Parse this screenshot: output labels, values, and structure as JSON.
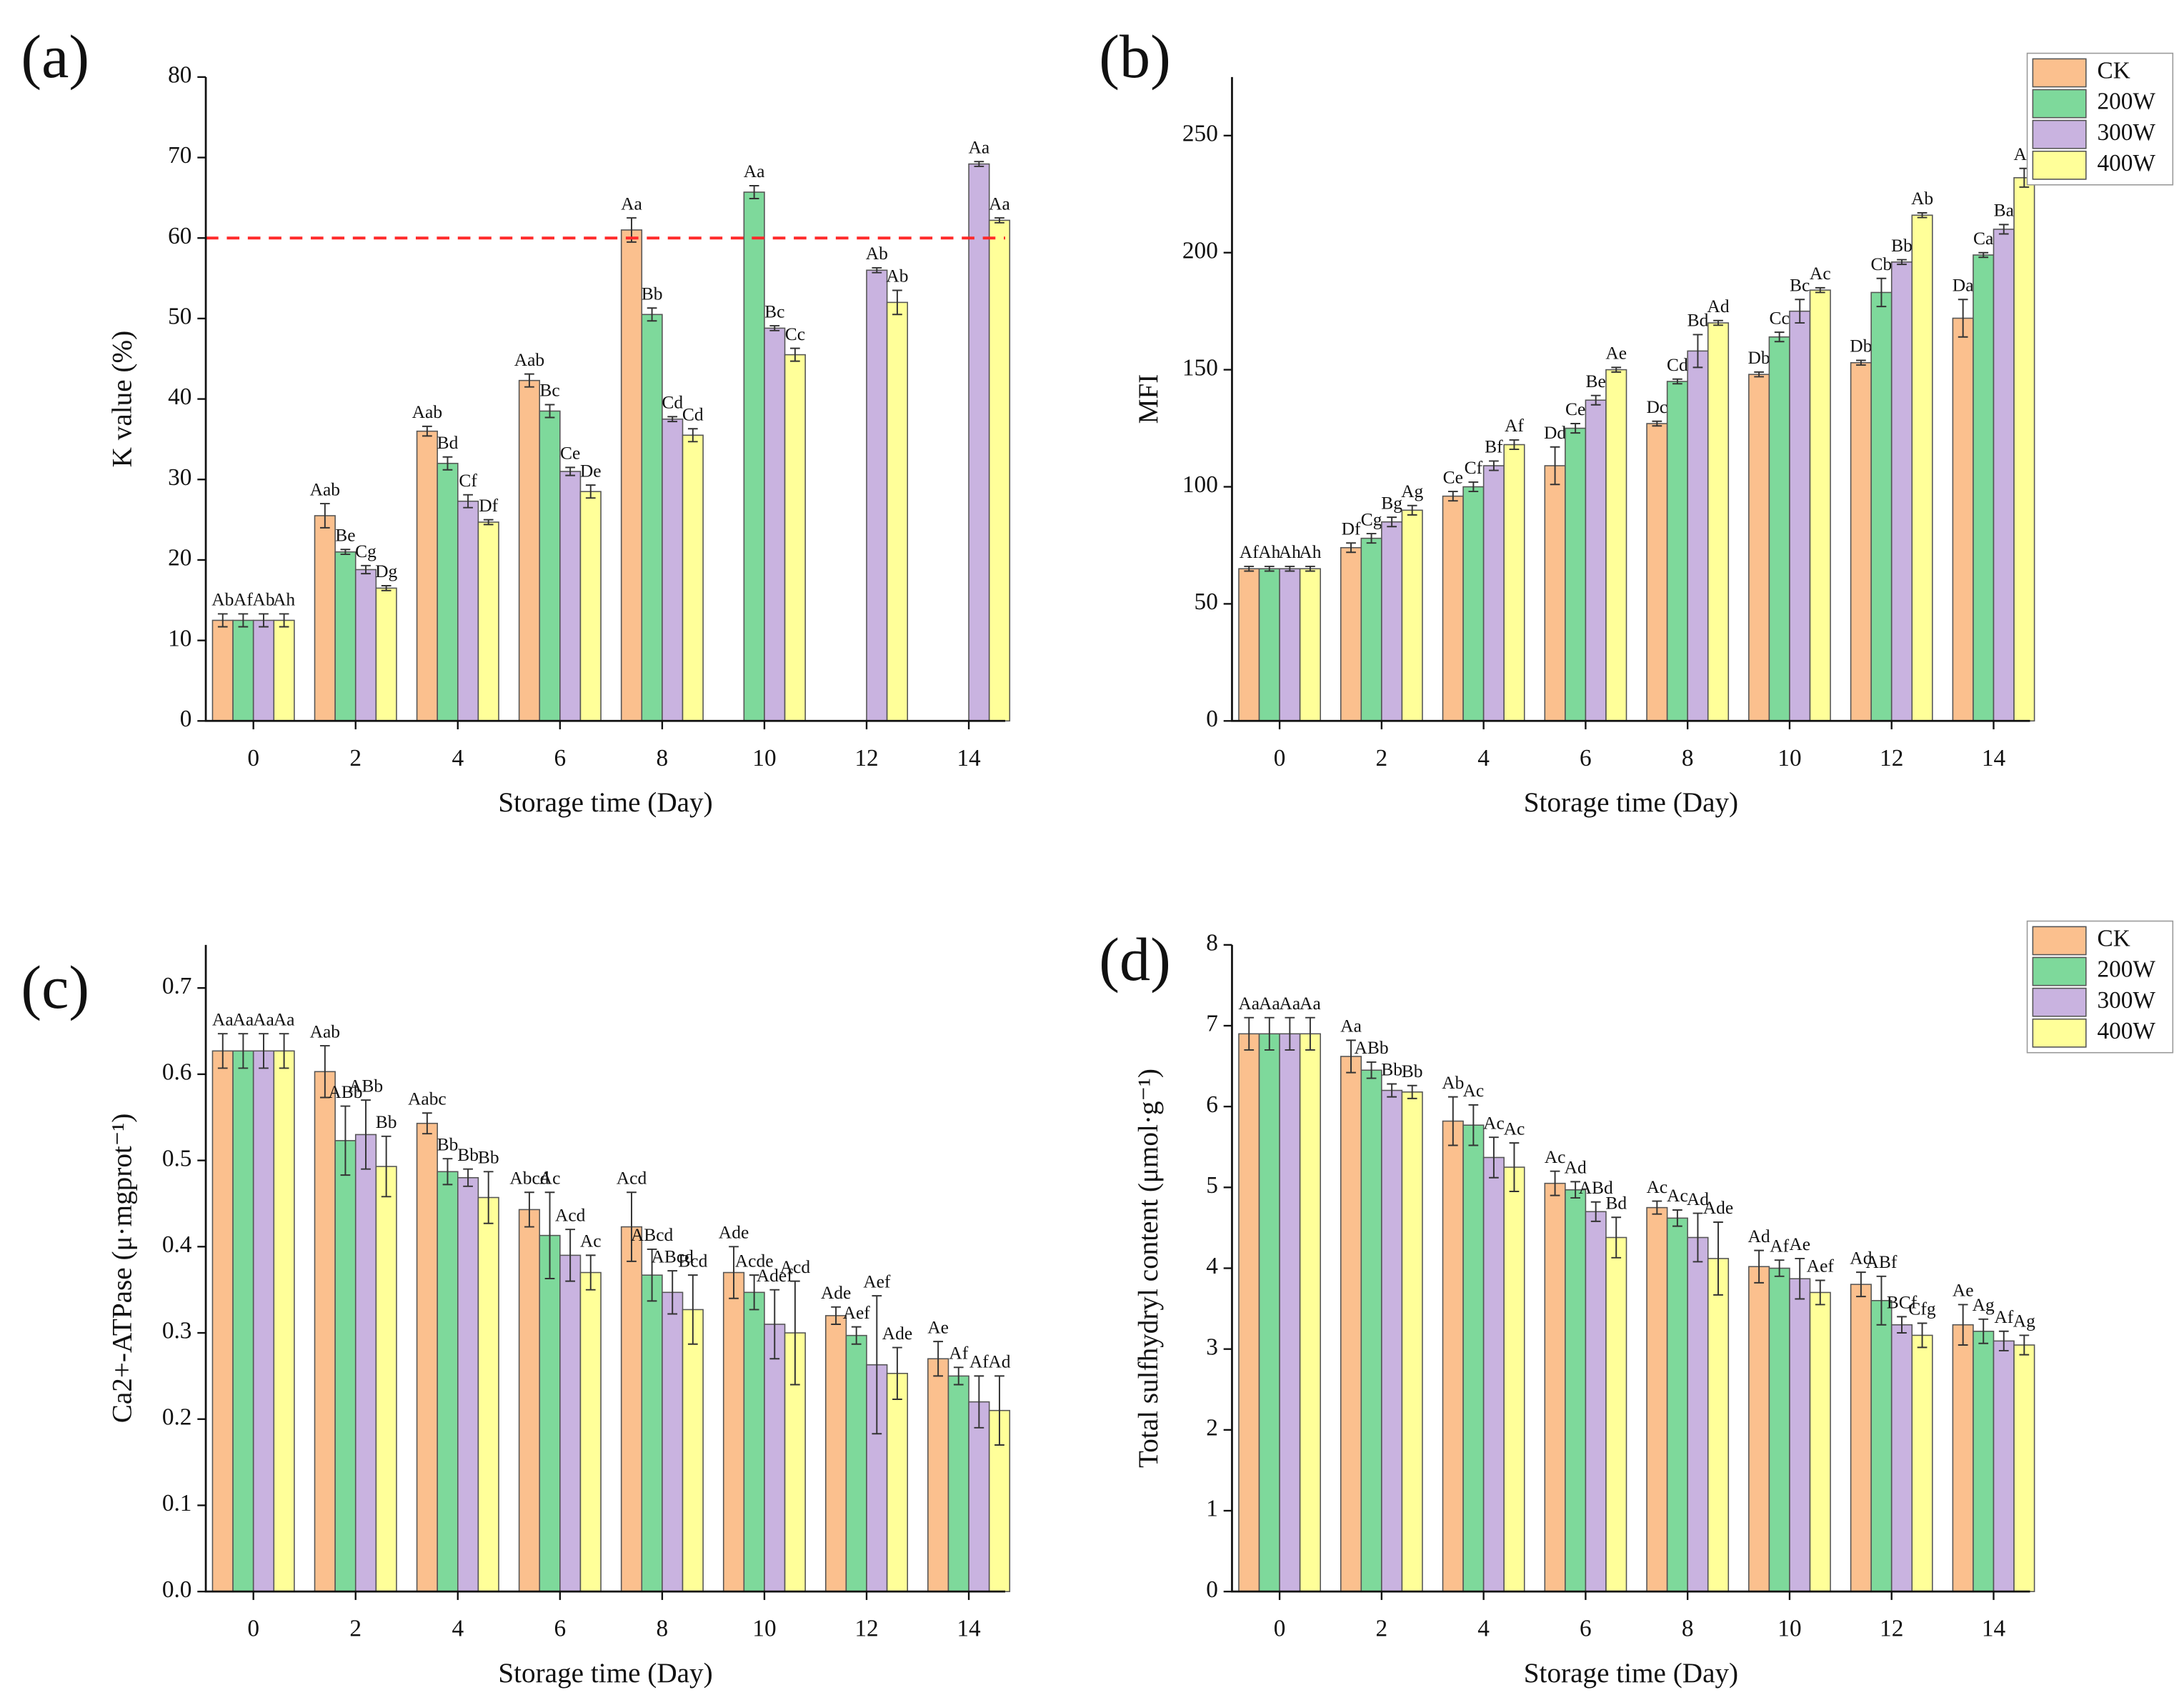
{
  "chart_data": [
    {
      "type": "bar",
      "panel": "(a)",
      "y_label": "K value (%)",
      "x_label": "Storage time (Day)",
      "categories": [
        0,
        2,
        4,
        6,
        8,
        10,
        12,
        14
      ],
      "ylim": [
        0,
        80
      ],
      "yticks": [
        0,
        10,
        20,
        30,
        40,
        50,
        60,
        70,
        80
      ],
      "hline": {
        "value": 60,
        "color": "#ff2a2a"
      },
      "series": [
        {
          "name": "CK",
          "color": "#fbc08e",
          "values": [
            12.5,
            25.5,
            36,
            42.3,
            61,
            null,
            null,
            null
          ],
          "errors": [
            0.8,
            1.5,
            0.6,
            0.8,
            1.5,
            null,
            null,
            null
          ],
          "letters": [
            "Ab",
            "Aab",
            "Aab",
            "Aab",
            "Aa",
            null,
            null,
            null
          ]
        },
        {
          "name": "200W",
          "color": "#7ed99b",
          "values": [
            12.5,
            21,
            32,
            38.5,
            50.5,
            65.7,
            null,
            null
          ],
          "errors": [
            0.8,
            0.3,
            0.8,
            0.8,
            0.8,
            0.8,
            null,
            null
          ],
          "letters": [
            "Af",
            "Be",
            "Bd",
            "Bc",
            "Bb",
            "Aa",
            null,
            null
          ]
        },
        {
          "name": "300W",
          "color": "#c9b3e0",
          "values": [
            12.5,
            18.8,
            27.3,
            31,
            37.5,
            48.8,
            56,
            69.2
          ],
          "errors": [
            0.8,
            0.5,
            0.8,
            0.5,
            0.3,
            0.3,
            0.3,
            0.3
          ],
          "letters": [
            "Ab",
            "Cg",
            "Cf",
            "Ce",
            "Cd",
            "Bc",
            "Ab",
            "Aa"
          ]
        },
        {
          "name": "400W",
          "color": "#ffff99",
          "values": [
            12.5,
            16.5,
            24.7,
            28.5,
            35.5,
            45.5,
            52,
            62.2
          ],
          "errors": [
            0.8,
            0.3,
            0.3,
            0.8,
            0.8,
            0.8,
            1.5,
            0.3
          ],
          "letters": [
            "Ah",
            "Dg",
            "Df",
            "De",
            "Cd",
            "Cc",
            "Ab",
            "Aa"
          ]
        }
      ]
    },
    {
      "type": "bar",
      "panel": "(b)",
      "y_label": "MFI",
      "x_label": "Storage time (Day)",
      "legend": "upper right",
      "categories": [
        0,
        2,
        4,
        6,
        8,
        10,
        12,
        14
      ],
      "ylim": [
        0,
        275
      ],
      "yticks": [
        0,
        50,
        100,
        150,
        200,
        250
      ],
      "series": [
        {
          "name": "CK",
          "color": "#fbc08e",
          "values": [
            65,
            74,
            96,
            109,
            127,
            148,
            153,
            172
          ],
          "errors": [
            1,
            2,
            2,
            8,
            1,
            1,
            1,
            8
          ],
          "letters": [
            "Af",
            "Df",
            "Ce",
            "Dd",
            "Dc",
            "Db",
            "Db",
            "Da"
          ]
        },
        {
          "name": "200W",
          "color": "#7ed99b",
          "values": [
            65,
            78,
            100,
            125,
            145,
            164,
            183,
            199
          ],
          "errors": [
            1,
            2,
            2,
            2,
            1,
            2,
            6,
            1
          ],
          "letters": [
            "Ah",
            "Cg",
            "Cf",
            "Ce",
            "Cd",
            "Cc",
            "Cb",
            "Ca"
          ]
        },
        {
          "name": "300W",
          "color": "#c9b3e0",
          "values": [
            65,
            85,
            109,
            137,
            158,
            175,
            196,
            210
          ],
          "errors": [
            1,
            2,
            2,
            2,
            7,
            5,
            1,
            2
          ],
          "letters": [
            "Ah",
            "Bg",
            "Bf",
            "Be",
            "Bd",
            "Bc",
            "Bb",
            "Ba"
          ]
        },
        {
          "name": "400W",
          "color": "#ffff99",
          "values": [
            65,
            90,
            118,
            150,
            170,
            184,
            216,
            232
          ],
          "errors": [
            1,
            2,
            2,
            1,
            1,
            1,
            1,
            4
          ],
          "letters": [
            "Ah",
            "Ag",
            "Af",
            "Ae",
            "Ad",
            "Ac",
            "Ab",
            "Aa"
          ]
        }
      ]
    },
    {
      "type": "bar",
      "panel": "(c)",
      "y_label": "Ca2+-ATPase (μ·mgprot⁻¹)",
      "x_label": "Storage time (Day)",
      "categories": [
        0,
        2,
        4,
        6,
        8,
        10,
        12,
        14
      ],
      "ylim": [
        0,
        0.75
      ],
      "yticks": [
        {
          "value": 0,
          "label": "0.0"
        },
        0.1,
        0.2,
        0.3,
        0.4,
        0.5,
        0.6,
        0.7
      ],
      "series": [
        {
          "name": "CK",
          "color": "#fbc08e",
          "values": [
            0.627,
            0.603,
            0.543,
            0.443,
            0.423,
            0.37,
            0.32,
            0.27
          ],
          "errors": [
            0.02,
            0.03,
            0.012,
            0.02,
            0.04,
            0.03,
            0.01,
            0.02
          ],
          "letters": [
            "Aa",
            "Aab",
            "Aabc",
            "Abcd",
            "Acd",
            "Ade",
            "Ade",
            "Ae"
          ]
        },
        {
          "name": "200W",
          "color": "#7ed99b",
          "values": [
            0.627,
            0.523,
            0.487,
            0.413,
            0.367,
            0.347,
            0.297,
            0.25
          ],
          "errors": [
            0.02,
            0.04,
            0.015,
            0.05,
            0.03,
            0.02,
            0.01,
            0.01
          ],
          "letters": [
            "Aa",
            "ABb",
            "Bb",
            "Ac",
            "ABcd",
            "Acde",
            "Aef",
            "Af"
          ]
        },
        {
          "name": "300W",
          "color": "#c9b3e0",
          "values": [
            0.627,
            0.53,
            0.48,
            0.39,
            0.347,
            0.31,
            0.263,
            0.22
          ],
          "errors": [
            0.02,
            0.04,
            0.01,
            0.03,
            0.025,
            0.04,
            0.08,
            0.03
          ],
          "letters": [
            "Aa",
            "ABb",
            "Bb",
            "Acd",
            "ABcd",
            "Adef",
            "Aef",
            "Af"
          ]
        },
        {
          "name": "400W",
          "color": "#ffff99",
          "values": [
            0.627,
            0.493,
            0.457,
            0.37,
            0.327,
            0.3,
            0.253,
            0.21
          ],
          "errors": [
            0.02,
            0.035,
            0.03,
            0.02,
            0.04,
            0.06,
            0.03,
            0.04
          ],
          "letters": [
            "Aa",
            "Bb",
            "Bb",
            "Ac",
            "Bcd",
            "Acd",
            "Ade",
            "Ad"
          ]
        }
      ]
    },
    {
      "type": "bar",
      "panel": "(d)",
      "y_label": "Total  sulfhydryl content (μmol·g⁻¹)",
      "x_label": "Storage time (Day)",
      "legend": "upper right",
      "categories": [
        0,
        2,
        4,
        6,
        8,
        10,
        12,
        14
      ],
      "ylim": [
        0,
        8
      ],
      "yticks": [
        0,
        1,
        2,
        3,
        4,
        5,
        6,
        7,
        8
      ],
      "series": [
        {
          "name": "CK",
          "color": "#fbc08e",
          "values": [
            6.9,
            6.62,
            5.82,
            5.05,
            4.75,
            4.02,
            3.8,
            3.3
          ],
          "errors": [
            0.2,
            0.2,
            0.3,
            0.15,
            0.08,
            0.2,
            0.15,
            0.25
          ],
          "letters": [
            "Aa",
            "Aa",
            "Ab",
            "Ac",
            "Ac",
            "Ad",
            "Ad",
            "Ae"
          ]
        },
        {
          "name": "200W",
          "color": "#7ed99b",
          "values": [
            6.9,
            6.45,
            5.77,
            4.97,
            4.62,
            4.0,
            3.6,
            3.22
          ],
          "errors": [
            0.2,
            0.1,
            0.25,
            0.1,
            0.1,
            0.1,
            0.3,
            0.15
          ],
          "letters": [
            "Aa",
            "ABb",
            "Ac",
            "Ad",
            "Ac",
            "Af",
            "ABf",
            "Ag"
          ]
        },
        {
          "name": "300W",
          "color": "#c9b3e0",
          "values": [
            6.9,
            6.2,
            5.37,
            4.7,
            4.38,
            3.87,
            3.3,
            3.1
          ],
          "errors": [
            0.2,
            0.08,
            0.25,
            0.12,
            0.3,
            0.25,
            0.1,
            0.12
          ],
          "letters": [
            "Aa",
            "Bb",
            "Ac",
            "ABd",
            "Ad",
            "Ae",
            "BCf",
            "Af"
          ]
        },
        {
          "name": "400W",
          "color": "#ffff99",
          "values": [
            6.9,
            6.18,
            5.25,
            4.38,
            4.12,
            3.7,
            3.17,
            3.05
          ],
          "errors": [
            0.2,
            0.08,
            0.3,
            0.25,
            0.45,
            0.15,
            0.15,
            0.12
          ],
          "letters": [
            "Aa",
            "Bb",
            "Ac",
            "Bd",
            "Ade",
            "Aef",
            "Cfg",
            "Ag"
          ]
        }
      ]
    }
  ]
}
